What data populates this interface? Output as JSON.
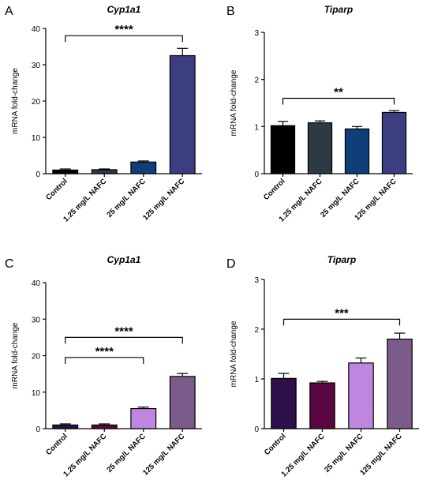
{
  "chart_data": [
    {
      "panel": "A",
      "type": "bar",
      "title": "Cyp1a1",
      "ylabel": "mRNA fold-change",
      "xlabel": "",
      "ylim": [
        0,
        40
      ],
      "yticks": [
        0,
        10,
        20,
        30,
        40
      ],
      "categories": [
        "Control",
        "1.25 mg/L NAFC",
        "25 mg/L NAFC",
        "125 mg/L NAFC"
      ],
      "values": [
        1.0,
        1.1,
        3.2,
        32.5
      ],
      "errors": [
        0.3,
        0.2,
        0.3,
        2.0
      ],
      "colors": [
        "#000000",
        "#2b3a44",
        "#0f3e7a",
        "#3c3e82"
      ],
      "significance": [
        {
          "from": 0,
          "to": 3,
          "label": "****",
          "y": 38
        }
      ]
    },
    {
      "panel": "B",
      "type": "bar",
      "title": "Tiparp",
      "ylabel": "mRNA fold-change",
      "xlabel": "",
      "ylim": [
        0,
        3
      ],
      "yticks": [
        0,
        1,
        2,
        3
      ],
      "categories": [
        "Control",
        "1.25 mg/L NAFC",
        "25 mg/L NAFC",
        "125 mg/L NAFC"
      ],
      "values": [
        1.02,
        1.08,
        0.95,
        1.3
      ],
      "errors": [
        0.09,
        0.04,
        0.05,
        0.04
      ],
      "colors": [
        "#000000",
        "#2b3a44",
        "#0f3e7a",
        "#3c3e82"
      ],
      "significance": [
        {
          "from": 0,
          "to": 3,
          "label": "**",
          "y": 1.6
        }
      ]
    },
    {
      "panel": "C",
      "type": "bar",
      "title": "Cyp1a1",
      "ylabel": "mRNA fold-change",
      "xlabel": "",
      "ylim": [
        0,
        40
      ],
      "yticks": [
        0,
        10,
        20,
        30,
        40
      ],
      "categories": [
        "Control",
        "1.25 mg/L NAFC",
        "25 mg/L NAFC",
        "125 mg/L NAFC"
      ],
      "values": [
        1.0,
        1.0,
        5.5,
        14.3
      ],
      "errors": [
        0.3,
        0.3,
        0.4,
        0.8
      ],
      "colors": [
        "#2d0f4a",
        "#5a0640",
        "#bf86e0",
        "#7b5b8a"
      ],
      "significance": [
        {
          "from": 0,
          "to": 2,
          "label": "****",
          "y": 19.5
        },
        {
          "from": 0,
          "to": 3,
          "label": "****",
          "y": 25
        }
      ]
    },
    {
      "panel": "D",
      "type": "bar",
      "title": "Tiparp",
      "ylabel": "mRNA fold-change",
      "xlabel": "",
      "ylim": [
        0,
        3
      ],
      "yticks": [
        0,
        1,
        2,
        3
      ],
      "categories": [
        "Control",
        "1.25 mg/L NAFC",
        "25 mg/L NAFC",
        "125 mg/L NAFC"
      ],
      "values": [
        1.01,
        0.92,
        1.32,
        1.8
      ],
      "errors": [
        0.1,
        0.03,
        0.1,
        0.12
      ],
      "colors": [
        "#2d0f4a",
        "#5a0640",
        "#bf86e0",
        "#7b5b8a"
      ],
      "significance": [
        {
          "from": 0,
          "to": 3,
          "label": "***",
          "y": 2.2
        }
      ]
    }
  ]
}
